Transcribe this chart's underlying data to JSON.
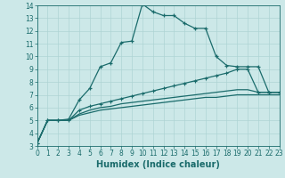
{
  "xlabel": "Humidex (Indice chaleur)",
  "xlim": [
    0,
    23
  ],
  "ylim": [
    3,
    14
  ],
  "xticks": [
    0,
    1,
    2,
    3,
    4,
    5,
    6,
    7,
    8,
    9,
    10,
    11,
    12,
    13,
    14,
    15,
    16,
    17,
    18,
    19,
    20,
    21,
    22,
    23
  ],
  "yticks": [
    3,
    4,
    5,
    6,
    7,
    8,
    9,
    10,
    11,
    12,
    13,
    14
  ],
  "grid_color": "#aed4d4",
  "bg_color": "#cce8e8",
  "line_color": "#1a6b6b",
  "line1_x": [
    0,
    1,
    2,
    3,
    4,
    5,
    6,
    7,
    8,
    9,
    10,
    11,
    12,
    13,
    14,
    15,
    16,
    17,
    18,
    19,
    20,
    21,
    22,
    23
  ],
  "line1_y": [
    3.2,
    5.0,
    5.0,
    5.1,
    6.6,
    7.5,
    9.2,
    9.5,
    11.1,
    11.2,
    14.1,
    13.5,
    13.2,
    13.2,
    12.6,
    12.2,
    12.2,
    10.0,
    9.3,
    9.2,
    9.2,
    9.2,
    7.2,
    7.2
  ],
  "line2_x": [
    0,
    1,
    2,
    3,
    4,
    5,
    6,
    7,
    8,
    9,
    10,
    11,
    12,
    13,
    14,
    15,
    16,
    17,
    18,
    19,
    20,
    21,
    22,
    23
  ],
  "line2_y": [
    3.2,
    5.0,
    5.0,
    5.0,
    5.8,
    6.1,
    6.3,
    6.5,
    6.7,
    6.9,
    7.1,
    7.3,
    7.5,
    7.7,
    7.9,
    8.1,
    8.3,
    8.5,
    8.7,
    9.0,
    9.0,
    7.2,
    7.2,
    7.2
  ],
  "line3_x": [
    0,
    1,
    2,
    3,
    4,
    5,
    6,
    7,
    8,
    9,
    10,
    11,
    12,
    13,
    14,
    15,
    16,
    17,
    18,
    19,
    20,
    21,
    22,
    23
  ],
  "line3_y": [
    3.2,
    5.0,
    5.0,
    5.0,
    5.5,
    5.8,
    6.0,
    6.1,
    6.3,
    6.4,
    6.5,
    6.6,
    6.7,
    6.8,
    6.9,
    7.0,
    7.1,
    7.2,
    7.3,
    7.4,
    7.4,
    7.2,
    7.2,
    7.2
  ],
  "line4_x": [
    0,
    1,
    2,
    3,
    4,
    5,
    6,
    7,
    8,
    9,
    10,
    11,
    12,
    13,
    14,
    15,
    16,
    17,
    18,
    19,
    20,
    21,
    22,
    23
  ],
  "line4_y": [
    3.2,
    5.0,
    5.0,
    5.0,
    5.4,
    5.6,
    5.8,
    5.9,
    6.0,
    6.1,
    6.2,
    6.3,
    6.4,
    6.5,
    6.6,
    6.7,
    6.8,
    6.8,
    6.9,
    7.0,
    7.0,
    7.0,
    7.0,
    7.0
  ],
  "xlabel_fontsize": 7,
  "tick_fontsize": 5.5,
  "linewidth": 0.9,
  "markersize": 3.0
}
